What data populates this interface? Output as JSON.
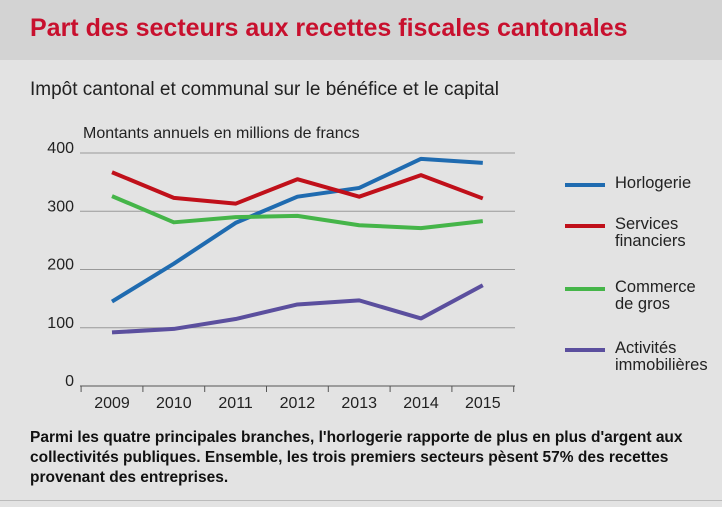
{
  "chart_data": {
    "type": "line",
    "title": "Part des secteurs aux recettes fiscales cantonales",
    "subtitle": "Impôt cantonal et communal sur le bénéfice et le capital",
    "y_axis_label": "Montants annuels en millions de francs",
    "categories": [
      "2009",
      "2010",
      "2011",
      "2012",
      "2013",
      "2014",
      "2015"
    ],
    "series": [
      {
        "name": "Horlogerie",
        "color": "#1f6bb0",
        "values": [
          145,
          210,
          280,
          325,
          340,
          390,
          383
        ]
      },
      {
        "name": "Services financiers",
        "color": "#c0101a",
        "values": [
          367,
          323,
          313,
          355,
          325,
          362,
          322
        ]
      },
      {
        "name": "Commerce de gros",
        "color": "#45b549",
        "values": [
          326,
          281,
          290,
          292,
          276,
          271,
          283
        ]
      },
      {
        "name": "Activités immobilières",
        "color": "#5b4f9e",
        "values": [
          92,
          98,
          115,
          140,
          147,
          116,
          173
        ]
      }
    ],
    "ylim": [
      0,
      400
    ],
    "yticks": [
      0,
      100,
      200,
      300,
      400
    ],
    "grid": true,
    "legend": "right",
    "note": "Parmi les quatre principales branches, l'horlogerie rapporte de plus en plus d'argent aux collectivités publiques. Ensemble, les trois premiers secteurs pèsent 57% des recettes provenant des entreprises."
  }
}
